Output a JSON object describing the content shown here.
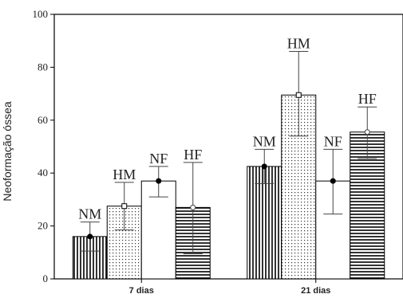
{
  "chart_data": {
    "type": "bar",
    "ylabel": "Neoformação óssea",
    "xlabel": "",
    "ylim": [
      0,
      100
    ],
    "yticks": [
      "0",
      "20",
      "40",
      "60",
      "80",
      "100"
    ],
    "grid": false,
    "categories": [
      "7 dias",
      "21 dias"
    ],
    "series": [
      {
        "name": "NM",
        "pattern": "vertical-lines",
        "marker": "filled-circle",
        "values": [
          16,
          42.5
        ],
        "err_low": [
          10.5,
          36
        ],
        "err_high": [
          21.5,
          49
        ]
      },
      {
        "name": "HM",
        "pattern": "dots",
        "marker": "open-square",
        "values": [
          27.5,
          69.5
        ],
        "err_low": [
          18.5,
          54
        ],
        "err_high": [
          36.5,
          86
        ]
      },
      {
        "name": "NF",
        "pattern": "plain",
        "marker": "filled-circle",
        "values": [
          37,
          37
        ],
        "err_low": [
          31,
          24.5
        ],
        "err_high": [
          42.5,
          49
        ]
      },
      {
        "name": "HF",
        "pattern": "horizontal-lines",
        "marker": "open-circle",
        "values": [
          27,
          55.5
        ],
        "err_low": [
          9.5,
          45.5
        ],
        "err_high": [
          44,
          65
        ]
      }
    ]
  }
}
